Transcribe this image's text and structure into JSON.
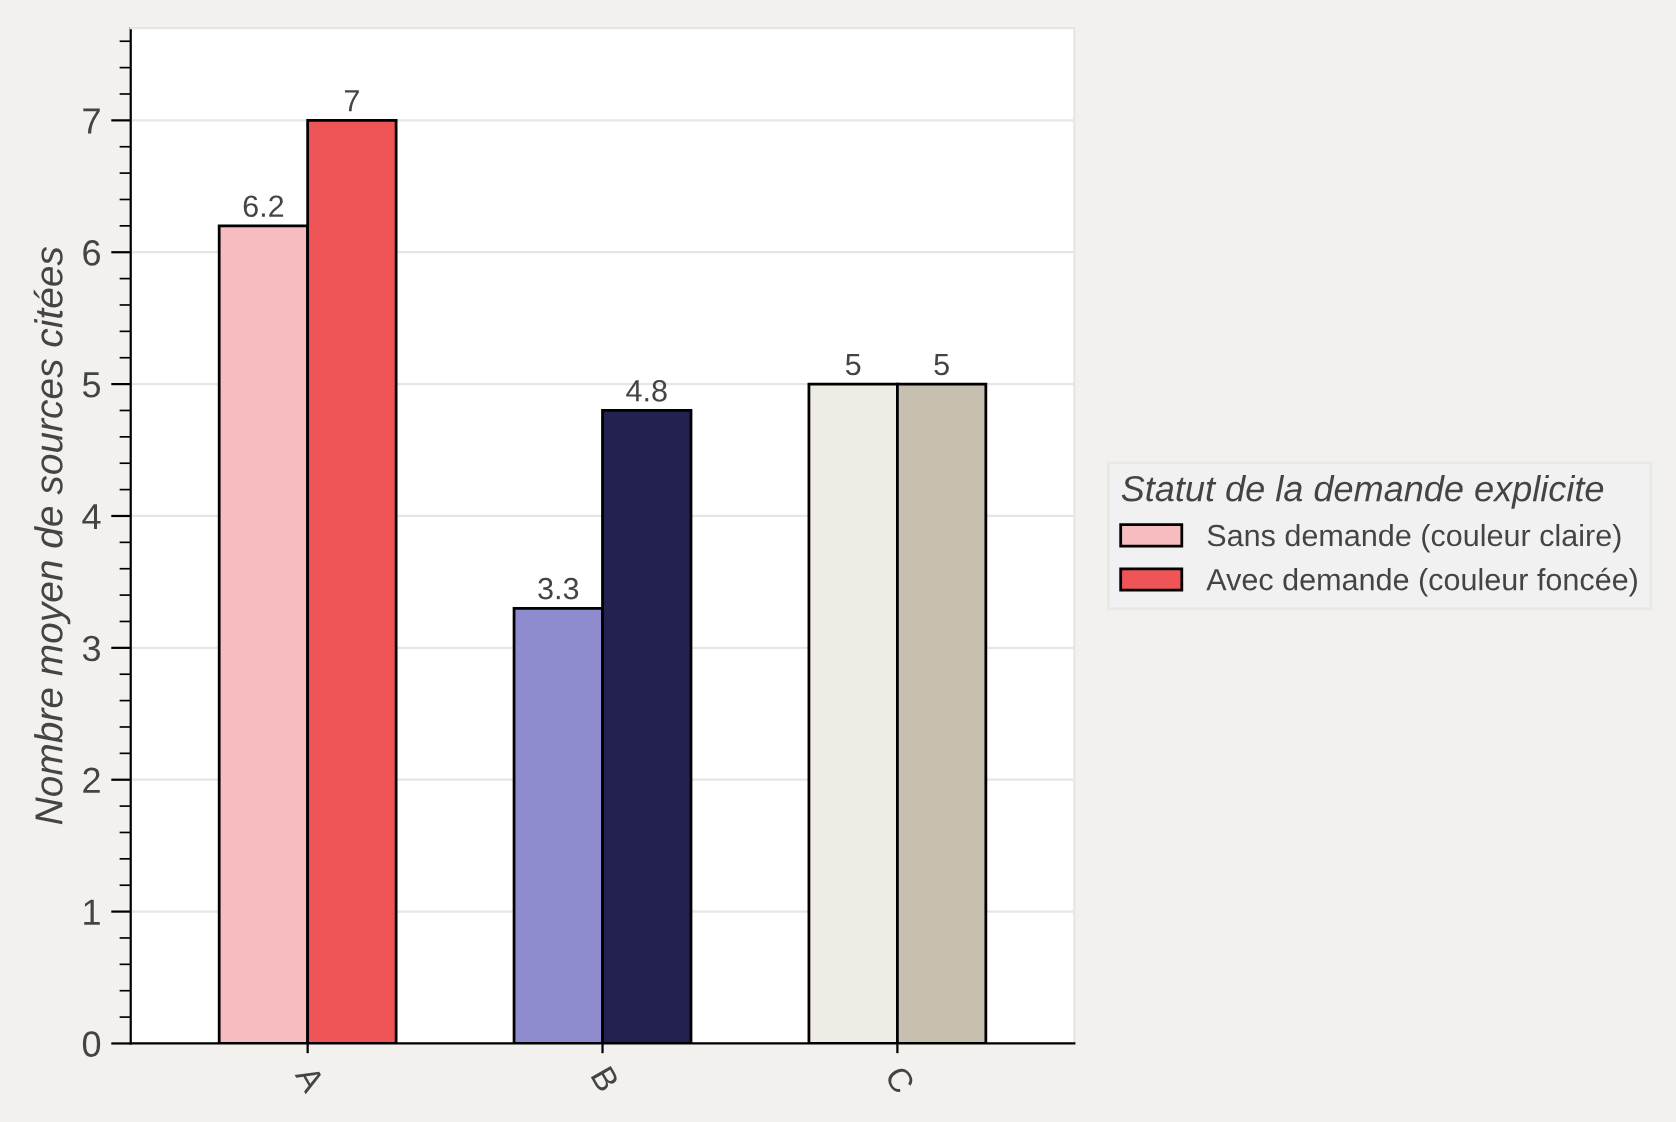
{
  "chart_data": {
    "type": "bar",
    "ylabel": "Nombre moyen de sources citées",
    "legend_title": "Statut de la demande explicite",
    "categories": [
      "A",
      "B",
      "C"
    ],
    "series": [
      {
        "name": "Sans demande (couleur claire)",
        "color": "#f7bcbf",
        "colors": [
          "#f7bcbf",
          "#8e8bce",
          "#efebe5"
        ],
        "values": [
          6.2,
          3.3,
          5
        ]
      },
      {
        "name": "Avec demande (couleur foncée)",
        "color": "#ef5557",
        "colors": [
          "#ef5557",
          "#23214f",
          "#c7bfb0"
        ],
        "values": [
          7,
          4.8,
          5
        ]
      }
    ],
    "ylim": [
      0,
      7.7
    ],
    "yticks": [
      0,
      1,
      2,
      3,
      4,
      5,
      6,
      7
    ],
    "grid": "y",
    "legend": "right",
    "data_labels": true
  }
}
